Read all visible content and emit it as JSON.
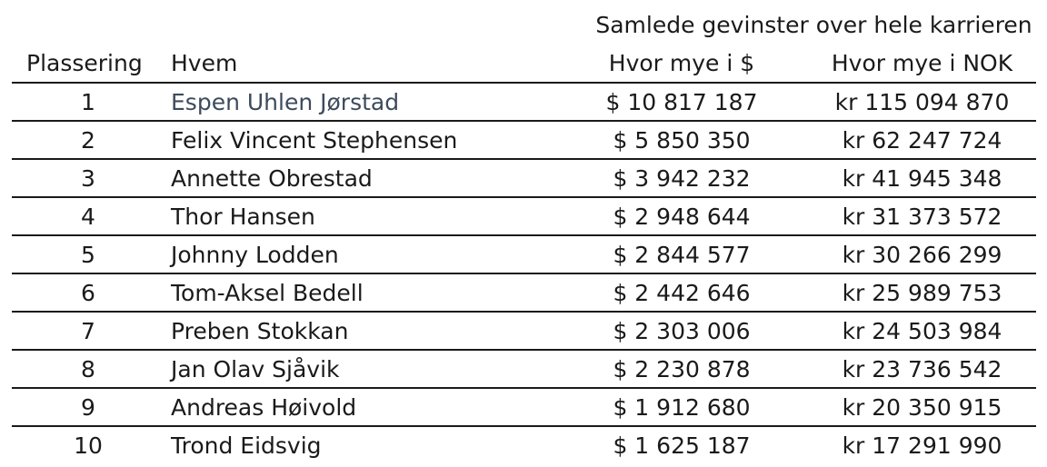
{
  "table": {
    "group_header": "Samlede gevinster over hele karrieren",
    "headers": {
      "rank": "Plassering",
      "name": "Hvem",
      "usd": "Hvor mye i $",
      "nok": "Hvor mye i NOK"
    },
    "rows": [
      {
        "rank": "1",
        "name": "Espen Uhlen Jørstad",
        "usd": "$ 10 817 187",
        "nok": "kr 115 094 870"
      },
      {
        "rank": "2",
        "name": "Felix Vincent Stephensen",
        "usd": "$ 5 850 350",
        "nok": "kr 62 247 724"
      },
      {
        "rank": "3",
        "name": "Annette Obrestad",
        "usd": "$ 3 942 232",
        "nok": "kr 41 945 348"
      },
      {
        "rank": "4",
        "name": "Thor Hansen",
        "usd": "$ 2 948 644",
        "nok": "kr 31 373 572"
      },
      {
        "rank": "5",
        "name": "Johnny Lodden",
        "usd": "$ 2 844 577",
        "nok": "kr 30 266 299"
      },
      {
        "rank": "6",
        "name": "Tom-Aksel Bedell",
        "usd": "$ 2 442 646",
        "nok": "kr 25 989 753"
      },
      {
        "rank": "7",
        "name": "Preben Stokkan",
        "usd": "$ 2 303 006",
        "nok": "kr 24 503 984"
      },
      {
        "rank": "8",
        "name": "Jan Olav Sjåvik",
        "usd": "$ 2 230 878",
        "nok": "kr 23 736 542"
      },
      {
        "rank": "9",
        "name": "Andreas Høivold",
        "usd": "$ 1 912 680",
        "nok": "kr 20 350 915"
      },
      {
        "rank": "10",
        "name": "Trond Eidsvig",
        "usd": "$ 1 625 187",
        "nok": "kr 17 291 990"
      }
    ]
  },
  "colors": {
    "text": "#1a1a1a",
    "link": "#3d4b5c",
    "rule": "#1a1a1a"
  }
}
